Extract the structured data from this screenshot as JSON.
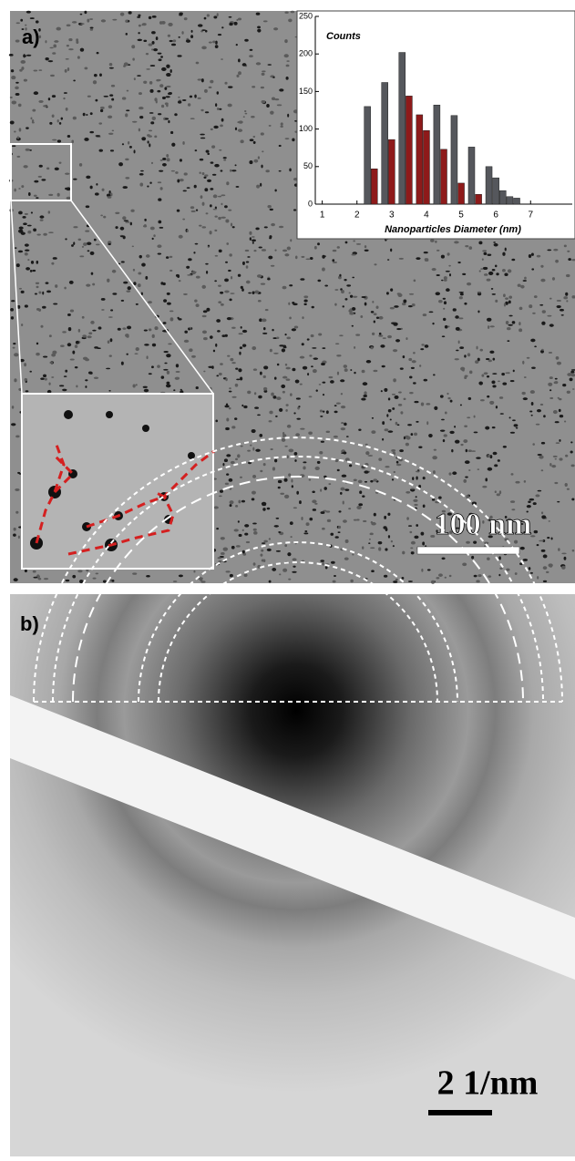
{
  "chart_data": {
    "type": "bar",
    "y_label": "Counts",
    "x_label": "Nanoparticles Diameter (nm)",
    "series": [
      {
        "name": null,
        "color": "#55575c",
        "x": [
          2.3,
          2.8,
          3.3,
          4.3,
          4.8,
          5.3,
          5.8,
          6.0,
          6.2,
          6.4,
          6.6
        ],
        "values": [
          130,
          162,
          202,
          132,
          118,
          76,
          50,
          35,
          18,
          10,
          8
        ]
      },
      {
        "name": null,
        "color": "#8e1a1a",
        "x": [
          2.5,
          3.0,
          3.5,
          3.8,
          4.0,
          4.5,
          5.0,
          5.5
        ],
        "values": [
          47,
          86,
          144,
          119,
          98,
          73,
          28,
          13
        ]
      }
    ],
    "xlim": [
      0.8,
      8.2
    ],
    "xticks": [
      1,
      2,
      3,
      4,
      5,
      6,
      7
    ],
    "ylim": [
      0,
      250
    ],
    "yticks": [
      0,
      50,
      100,
      150,
      200,
      250
    ]
  },
  "panels": {
    "a": {
      "label": "a)",
      "scale_bar": "100 nm"
    },
    "b": {
      "label": "b)",
      "scale_bar": "2 1/nm"
    }
  }
}
